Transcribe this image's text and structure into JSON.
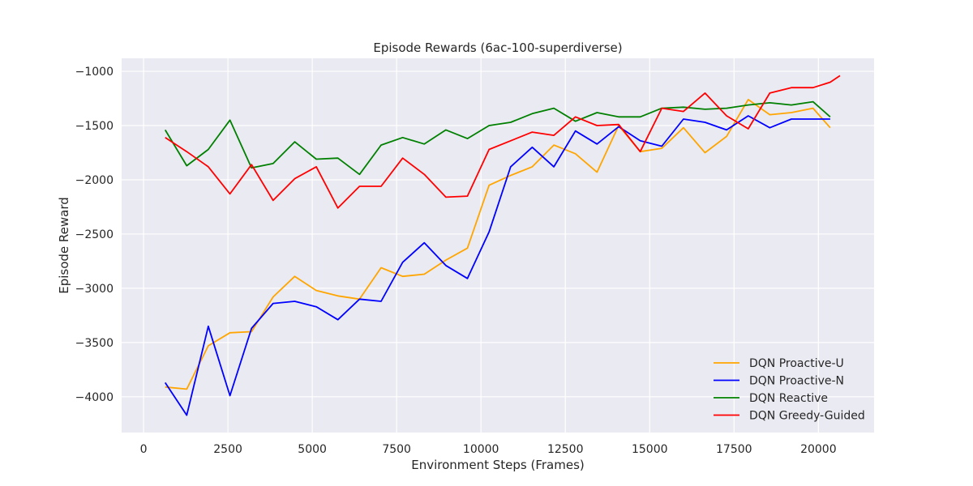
{
  "chart_data": {
    "type": "line",
    "title": "Episode Rewards (6ac-100-superdiverse)",
    "xlabel": "Environment Steps (Frames)",
    "ylabel": "Episode Reward",
    "xlim": [
      -650,
      21650
    ],
    "ylim": [
      -4330,
      -880
    ],
    "xticks": [
      0,
      2500,
      5000,
      7500,
      10000,
      12500,
      15000,
      17500,
      20000
    ],
    "xtick_labels": [
      "0",
      "2500",
      "5000",
      "7500",
      "10000",
      "12500",
      "15000",
      "17500",
      "20000"
    ],
    "yticks": [
      -4000,
      -3500,
      -3000,
      -2500,
      -2000,
      -1500,
      -1000
    ],
    "ytick_labels": [
      "−4000",
      "−3500",
      "−3000",
      "−2500",
      "−2000",
      "−1500",
      "−1000"
    ],
    "grid": true,
    "legend_position": "lower-right",
    "series": [
      {
        "name": "DQN Proactive-U",
        "color": "#ffa500",
        "x": [
          640,
          1280,
          1920,
          2560,
          3200,
          3840,
          4480,
          5120,
          5760,
          6400,
          7040,
          7680,
          8320,
          8960,
          9600,
          10240,
          10880,
          11520,
          12160,
          12800,
          13440,
          14080,
          14720,
          15360,
          16000,
          16640,
          17280,
          17920,
          18560,
          19200,
          19840,
          20350
        ],
        "y": [
          -3910,
          -3930,
          -3530,
          -3410,
          -3400,
          -3080,
          -2890,
          -3020,
          -3070,
          -3100,
          -2810,
          -2890,
          -2870,
          -2740,
          -2630,
          -2050,
          -1960,
          -1880,
          -1680,
          -1760,
          -1930,
          -1500,
          -1740,
          -1710,
          -1520,
          -1750,
          -1600,
          -1260,
          -1400,
          -1380,
          -1340,
          -1520
        ]
      },
      {
        "name": "DQN Proactive-N",
        "color": "#0000ff",
        "x": [
          640,
          1280,
          1920,
          2560,
          3200,
          3840,
          4480,
          5120,
          5760,
          6400,
          7040,
          7680,
          8320,
          8960,
          9600,
          10240,
          10880,
          11520,
          12160,
          12800,
          13440,
          14080,
          14720,
          15360,
          16000,
          16640,
          17280,
          17920,
          18560,
          19200,
          19840,
          20350
        ],
        "y": [
          -3870,
          -4170,
          -3350,
          -3990,
          -3370,
          -3140,
          -3120,
          -3170,
          -3290,
          -3100,
          -3120,
          -2760,
          -2580,
          -2790,
          -2910,
          -2480,
          -1880,
          -1700,
          -1880,
          -1550,
          -1670,
          -1510,
          -1640,
          -1690,
          -1440,
          -1470,
          -1540,
          -1410,
          -1520,
          -1440,
          -1440,
          -1440
        ]
      },
      {
        "name": "DQN Reactive",
        "color": "#008000",
        "x": [
          640,
          1280,
          1920,
          2560,
          3200,
          3840,
          4480,
          5120,
          5760,
          6400,
          7040,
          7680,
          8320,
          8960,
          9600,
          10240,
          10880,
          11520,
          12160,
          12800,
          13440,
          14080,
          14720,
          15360,
          16000,
          16640,
          17280,
          17920,
          18560,
          19200,
          19840,
          20350
        ],
        "y": [
          -1540,
          -1870,
          -1720,
          -1450,
          -1890,
          -1850,
          -1650,
          -1810,
          -1800,
          -1950,
          -1680,
          -1610,
          -1670,
          -1540,
          -1620,
          -1500,
          -1470,
          -1390,
          -1340,
          -1460,
          -1380,
          -1420,
          -1420,
          -1340,
          -1330,
          -1350,
          -1340,
          -1310,
          -1290,
          -1310,
          -1280,
          -1420
        ]
      },
      {
        "name": "DQN Greedy-Guided",
        "color": "#ff0000",
        "x": [
          640,
          1280,
          1920,
          2560,
          3200,
          3840,
          4480,
          5120,
          5760,
          6400,
          7040,
          7680,
          8320,
          8960,
          9600,
          10240,
          10880,
          11520,
          12160,
          12800,
          13440,
          14080,
          14720,
          15360,
          16000,
          16640,
          17280,
          17920,
          18560,
          19200,
          19840,
          20350,
          20640
        ],
        "y": [
          -1610,
          -1740,
          -1880,
          -2130,
          -1860,
          -2190,
          -1990,
          -1880,
          -2260,
          -2060,
          -2060,
          -1800,
          -1950,
          -2160,
          -2150,
          -1720,
          -1640,
          -1560,
          -1590,
          -1420,
          -1500,
          -1490,
          -1740,
          -1340,
          -1370,
          -1200,
          -1410,
          -1530,
          -1200,
          -1150,
          -1150,
          -1100,
          -1040
        ]
      }
    ]
  }
}
